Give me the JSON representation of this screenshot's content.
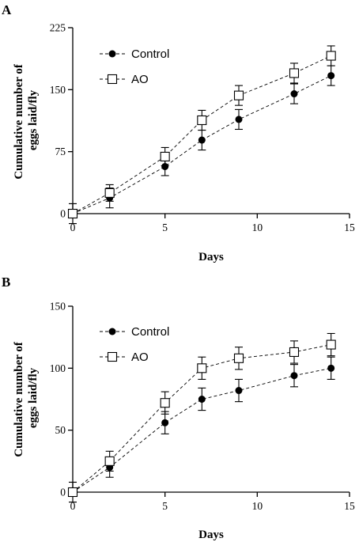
{
  "chart_data": [
    {
      "panel": "A",
      "type": "line",
      "xlabel": "Days",
      "ylabel": "Cumulative number of eggs laid/fly",
      "xlim": [
        0,
        15
      ],
      "ylim": [
        0,
        225
      ],
      "xticks": [
        0,
        5,
        10,
        15
      ],
      "yticks": [
        0,
        75,
        150,
        225
      ],
      "legend_position": "top-left",
      "x": [
        0,
        2,
        5,
        7,
        9,
        12,
        14
      ],
      "series": [
        {
          "name": "Control",
          "marker": "filled-circle",
          "values": [
            0,
            19,
            57,
            89,
            114,
            145,
            167
          ],
          "errors": [
            12,
            12,
            11,
            12,
            12,
            12,
            12
          ]
        },
        {
          "name": "AO",
          "marker": "open-square",
          "values": [
            0,
            25,
            69,
            113,
            143,
            170,
            191
          ],
          "errors": [
            12,
            10,
            11,
            12,
            12,
            12,
            12
          ]
        }
      ]
    },
    {
      "panel": "B",
      "type": "line",
      "xlabel": "Days",
      "ylabel": "Cumulative number of eggs laid/fly",
      "xlim": [
        0,
        15
      ],
      "ylim": [
        0,
        150
      ],
      "xticks": [
        0,
        5,
        10,
        15
      ],
      "yticks": [
        0,
        50,
        100,
        150
      ],
      "legend_position": "top-left",
      "x": [
        0,
        2,
        5,
        7,
        9,
        12,
        14
      ],
      "series": [
        {
          "name": "Control",
          "marker": "filled-circle",
          "values": [
            0,
            20,
            56,
            75,
            82,
            94,
            100
          ],
          "errors": [
            8,
            8,
            9,
            9,
            9,
            9,
            9
          ]
        },
        {
          "name": "AO",
          "marker": "open-square",
          "values": [
            0,
            25,
            72,
            100,
            108,
            113,
            119
          ],
          "errors": [
            8,
            8,
            9,
            9,
            9,
            9,
            9
          ]
        }
      ]
    }
  ]
}
